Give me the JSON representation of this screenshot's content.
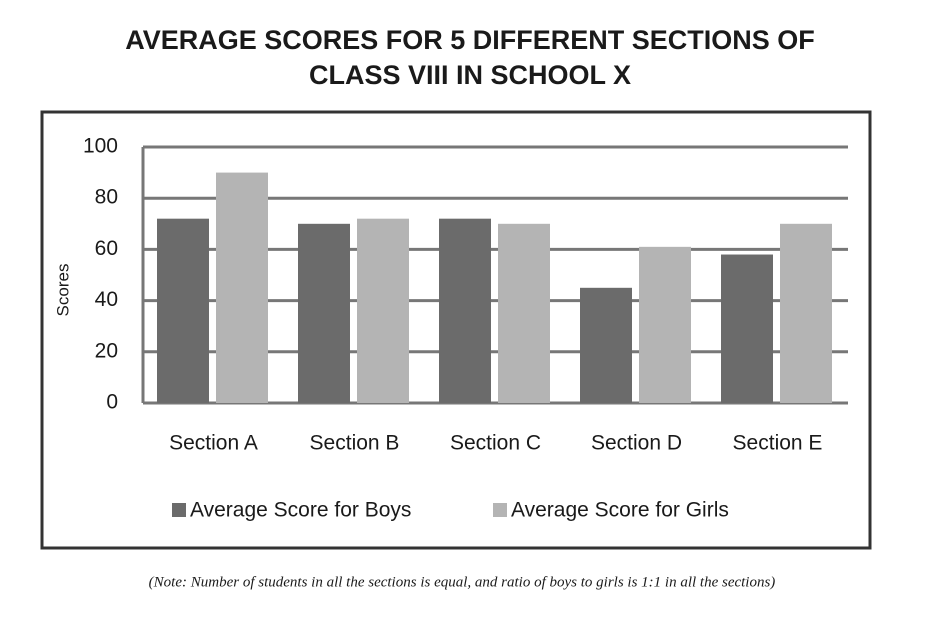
{
  "chart_data": {
    "type": "bar",
    "title": [
      "AVERAGE SCORES FOR 5  DIFFERENT SECTIONS OF",
      "CLASS VIII IN SCHOOL X"
    ],
    "y_label": "Scores",
    "categories": [
      "Section A",
      "Section B",
      "Section C",
      "Section D",
      "Section E"
    ],
    "series": [
      {
        "name": "Average Score for Boys",
        "color": "#6b6b6b",
        "values": [
          72,
          70,
          72,
          45,
          58
        ]
      },
      {
        "name": "Average Score for Girls",
        "color": "#b4b4b4",
        "values": [
          90,
          72,
          70,
          61,
          70
        ]
      }
    ],
    "ylim": [
      0,
      100
    ],
    "yticks": [
      0,
      20,
      40,
      60,
      80,
      100
    ],
    "grid": true,
    "note": "(Note: Number of students in all the sections is equal, and ratio of boys to girls is 1:1 in all the sections)"
  }
}
